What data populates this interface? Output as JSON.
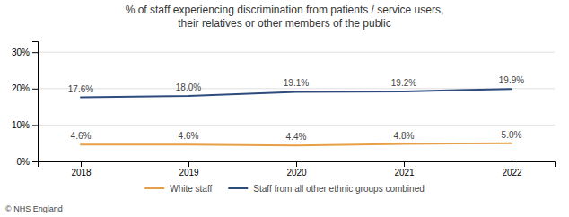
{
  "chart_data": {
    "type": "line",
    "title": "% of staff experiencing discrimination from patients / service users,\ntheir relatives or other members of the public",
    "x": [
      2018,
      2019,
      2020,
      2021,
      2022
    ],
    "series": [
      {
        "name": "White staff",
        "color": "#E8A048",
        "values": [
          4.6,
          4.6,
          4.4,
          4.8,
          5.0
        ],
        "value_labels": [
          "4.6%",
          "4.6%",
          "4.4%",
          "4.8%",
          "5.0%"
        ]
      },
      {
        "name": "Staff from all other ethnic groups combined",
        "color": "#2E4B7E",
        "values": [
          17.6,
          18.0,
          19.1,
          19.2,
          19.9
        ],
        "value_labels": [
          "17.6%",
          "18.0%",
          "19.1%",
          "19.2%",
          "19.9%"
        ]
      }
    ],
    "xlim": [
      2017.6,
      2022.4
    ],
    "xticks": [
      2018,
      2019,
      2020,
      2021,
      2022
    ],
    "ylim": [
      0,
      33
    ],
    "yticks": [
      {
        "value": 0,
        "label": "0%"
      },
      {
        "value": 10,
        "label": "10%"
      },
      {
        "value": 20,
        "label": "20%"
      },
      {
        "value": 30,
        "label": "30%"
      }
    ],
    "grid": true,
    "legend": "bottom",
    "data_labels": true,
    "annotations": [
      "© NHS England"
    ]
  }
}
